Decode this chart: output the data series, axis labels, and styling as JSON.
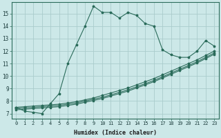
{
  "xlabel": "Humidex (Indice chaleur)",
  "bg_color": "#cce8e8",
  "line_color": "#2a6b5a",
  "grid_color": "#aacccc",
  "xlim": [
    -0.5,
    23.5
  ],
  "ylim": [
    6.6,
    15.9
  ],
  "xticks": [
    0,
    1,
    2,
    3,
    4,
    5,
    6,
    7,
    8,
    9,
    10,
    11,
    12,
    13,
    14,
    15,
    16,
    17,
    18,
    19,
    20,
    21,
    22,
    23
  ],
  "yticks": [
    7,
    8,
    9,
    10,
    11,
    12,
    13,
    14,
    15
  ],
  "lines": [
    {
      "x": [
        0,
        1,
        2,
        3,
        4,
        5,
        6,
        7,
        8,
        9,
        10,
        11,
        12,
        13,
        14,
        15,
        16,
        17,
        18,
        19,
        20,
        21,
        22,
        23
      ],
      "y": [
        7.5,
        7.2,
        7.1,
        7.0,
        7.8,
        8.6,
        11.0,
        12.5,
        14.0,
        15.6,
        15.1,
        15.1,
        14.65,
        15.1,
        14.85,
        14.2,
        14.0,
        12.1,
        11.7,
        11.5,
        11.5,
        12.0,
        12.85,
        12.4
      ]
    },
    {
      "x": [
        0,
        1,
        2,
        3,
        4,
        5,
        6,
        7,
        8,
        9,
        10,
        11,
        12,
        13,
        14,
        15,
        16,
        17,
        18,
        19,
        20,
        21,
        22,
        23
      ],
      "y": [
        7.5,
        7.55,
        7.6,
        7.65,
        7.7,
        7.75,
        7.85,
        7.95,
        8.1,
        8.25,
        8.45,
        8.65,
        8.85,
        9.05,
        9.3,
        9.55,
        9.8,
        10.1,
        10.4,
        10.7,
        11.0,
        11.3,
        11.65,
        12.0
      ]
    },
    {
      "x": [
        0,
        1,
        2,
        3,
        4,
        5,
        6,
        7,
        8,
        9,
        10,
        11,
        12,
        13,
        14,
        15,
        16,
        17,
        18,
        19,
        20,
        21,
        22,
        23
      ],
      "y": [
        7.4,
        7.45,
        7.5,
        7.55,
        7.6,
        7.65,
        7.75,
        7.85,
        8.0,
        8.15,
        8.3,
        8.5,
        8.7,
        8.9,
        9.15,
        9.4,
        9.65,
        9.95,
        10.25,
        10.55,
        10.85,
        11.15,
        11.5,
        11.85
      ]
    },
    {
      "x": [
        0,
        1,
        2,
        3,
        4,
        5,
        6,
        7,
        8,
        9,
        10,
        11,
        12,
        13,
        14,
        15,
        16,
        17,
        18,
        19,
        20,
        21,
        22,
        23
      ],
      "y": [
        7.3,
        7.35,
        7.4,
        7.45,
        7.5,
        7.55,
        7.65,
        7.75,
        7.9,
        8.05,
        8.2,
        8.4,
        8.6,
        8.8,
        9.05,
        9.3,
        9.55,
        9.85,
        10.15,
        10.45,
        10.75,
        11.05,
        11.4,
        11.75
      ]
    }
  ]
}
